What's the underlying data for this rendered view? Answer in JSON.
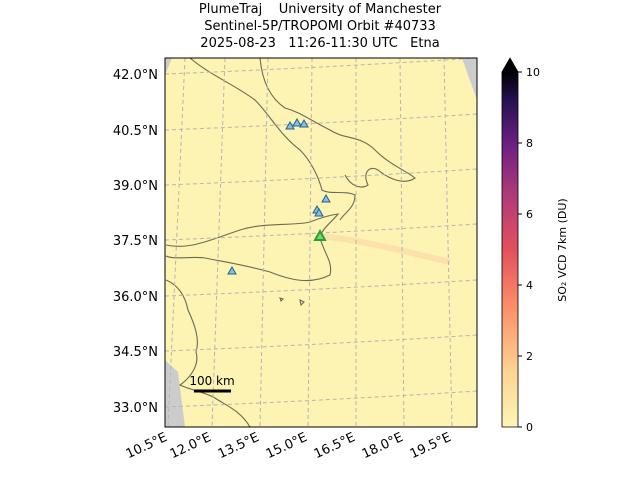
{
  "title": [
    "PlumeTraj    University of Manchester",
    "Sentinel-5P/TROPOMI Orbit #40733",
    "2025-08-23   11:26-11:30 UTC   Etna"
  ],
  "lat_labels": [
    "42.0°N",
    "40.5°N",
    "39.0°N",
    "37.5°N",
    "36.0°N",
    "34.5°N",
    "33.0°N"
  ],
  "lon_labels": [
    "10.5°E",
    "12.0°E",
    "13.5°E",
    "15.0°E",
    "16.5°E",
    "18.0°E",
    "19.5°E"
  ],
  "scale_bar": "100 km",
  "colorbar": {
    "label": "SO₂ VCD 7km (DU)",
    "lim": [
      0,
      10
    ],
    "ticks": [
      0,
      2,
      4,
      6,
      8,
      10
    ]
  }
}
